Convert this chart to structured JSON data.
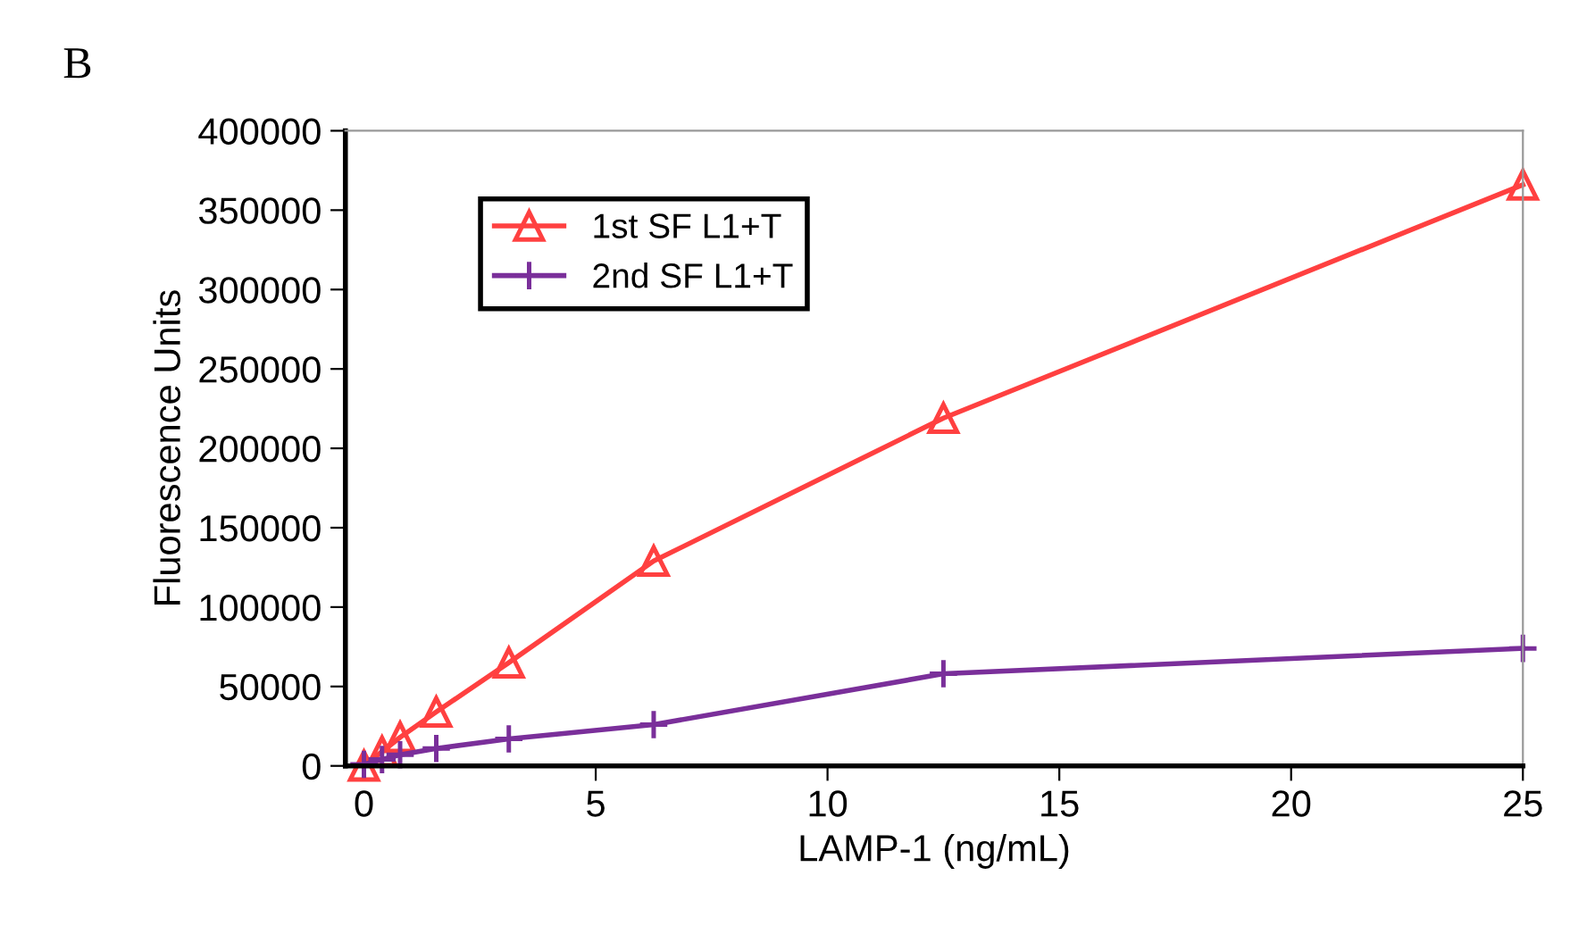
{
  "chart_data": {
    "type": "line",
    "xlabel": "LAMP-1 (ng/mL)",
    "ylabel": "Fluorescence Units",
    "annotations": [
      "B"
    ],
    "x": [
      0,
      0.39,
      0.78,
      1.56,
      3.125,
      6.25,
      12.5,
      25
    ],
    "series": [
      {
        "name": "1st SF L1+T",
        "color": "#ff4040",
        "values": [
          0,
          9000,
          18000,
          34000,
          65000,
          129000,
          219000,
          366000
        ],
        "marker": "triangle"
      },
      {
        "name": "2nd SF L1+T",
        "color": "#7a2f9a",
        "values": [
          1000,
          4000,
          7000,
          11000,
          17000,
          26000,
          58000,
          74000
        ],
        "marker": "cross"
      }
    ],
    "xlim": [
      -0.4,
      25
    ],
    "xticks": [
      0,
      5,
      10,
      15,
      20,
      25
    ],
    "ylim": [
      0,
      400000
    ],
    "yticks": [
      0,
      50000,
      100000,
      150000,
      200000,
      250000,
      300000,
      350000,
      400000
    ],
    "grid": false,
    "legend": "top left",
    "line_style": "solid"
  }
}
